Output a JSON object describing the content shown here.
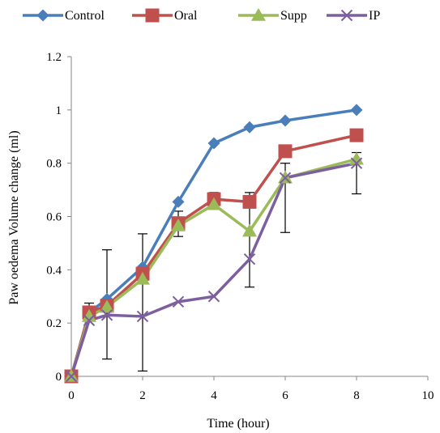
{
  "chart_data": {
    "type": "line",
    "title": "",
    "xlabel": "Time (hour)",
    "ylabel": "Paw oedema Volume change (ml)",
    "xlim": [
      0,
      10
    ],
    "ylim": [
      0,
      1.2
    ],
    "x_ticks": [
      "0",
      "2",
      "4",
      "6",
      "8",
      "10"
    ],
    "y_ticks": [
      "0",
      "0.2",
      "0.4",
      "0.6",
      "0.8",
      "1",
      "1.2"
    ],
    "grid": false,
    "legend_position": "top",
    "series": [
      {
        "name": "Control",
        "color": "#4a7ebb",
        "marker": "diamond",
        "x": [
          0,
          0.5,
          1,
          2,
          3,
          4,
          5,
          6,
          8
        ],
        "y": [
          0,
          0.24,
          0.29,
          0.41,
          0.655,
          0.875,
          0.935,
          0.96,
          1.0
        ]
      },
      {
        "name": "Oral",
        "color": "#c0504d",
        "marker": "square",
        "x": [
          0,
          0.5,
          1,
          2,
          3,
          4,
          5,
          6,
          8
        ],
        "y": [
          0,
          0.24,
          0.265,
          0.385,
          0.575,
          0.665,
          0.655,
          0.845,
          0.905
        ]
      },
      {
        "name": "Supp",
        "color": "#9bbb59",
        "marker": "triangle",
        "x": [
          0,
          0.5,
          1,
          2,
          3,
          4,
          5,
          6,
          8
        ],
        "y": [
          0,
          0.225,
          0.26,
          0.365,
          0.565,
          0.645,
          0.545,
          0.745,
          0.815
        ]
      },
      {
        "name": "IP",
        "color": "#7d5fa0",
        "marker": "x",
        "x": [
          0,
          0.5,
          1,
          2,
          3,
          4,
          5,
          6,
          8
        ],
        "y": [
          0,
          0.21,
          0.23,
          0.225,
          0.28,
          0.3,
          0.44,
          0.745,
          0.8
        ]
      }
    ],
    "error_bars": [
      {
        "x": 0.5,
        "low": 0.23,
        "high": 0.275
      },
      {
        "x": 1,
        "low": 0.065,
        "high": 0.475
      },
      {
        "x": 2,
        "low": 0.02,
        "high": 0.535
      },
      {
        "x": 3,
        "low": 0.525,
        "high": 0.62
      },
      {
        "x": 4,
        "low": 0.63,
        "high": 0.69
      },
      {
        "x": 5,
        "low": 0.335,
        "high": 0.69
      },
      {
        "x": 6,
        "low": 0.54,
        "high": 0.8
      },
      {
        "x": 8,
        "low": 0.685,
        "high": 0.84
      }
    ]
  }
}
